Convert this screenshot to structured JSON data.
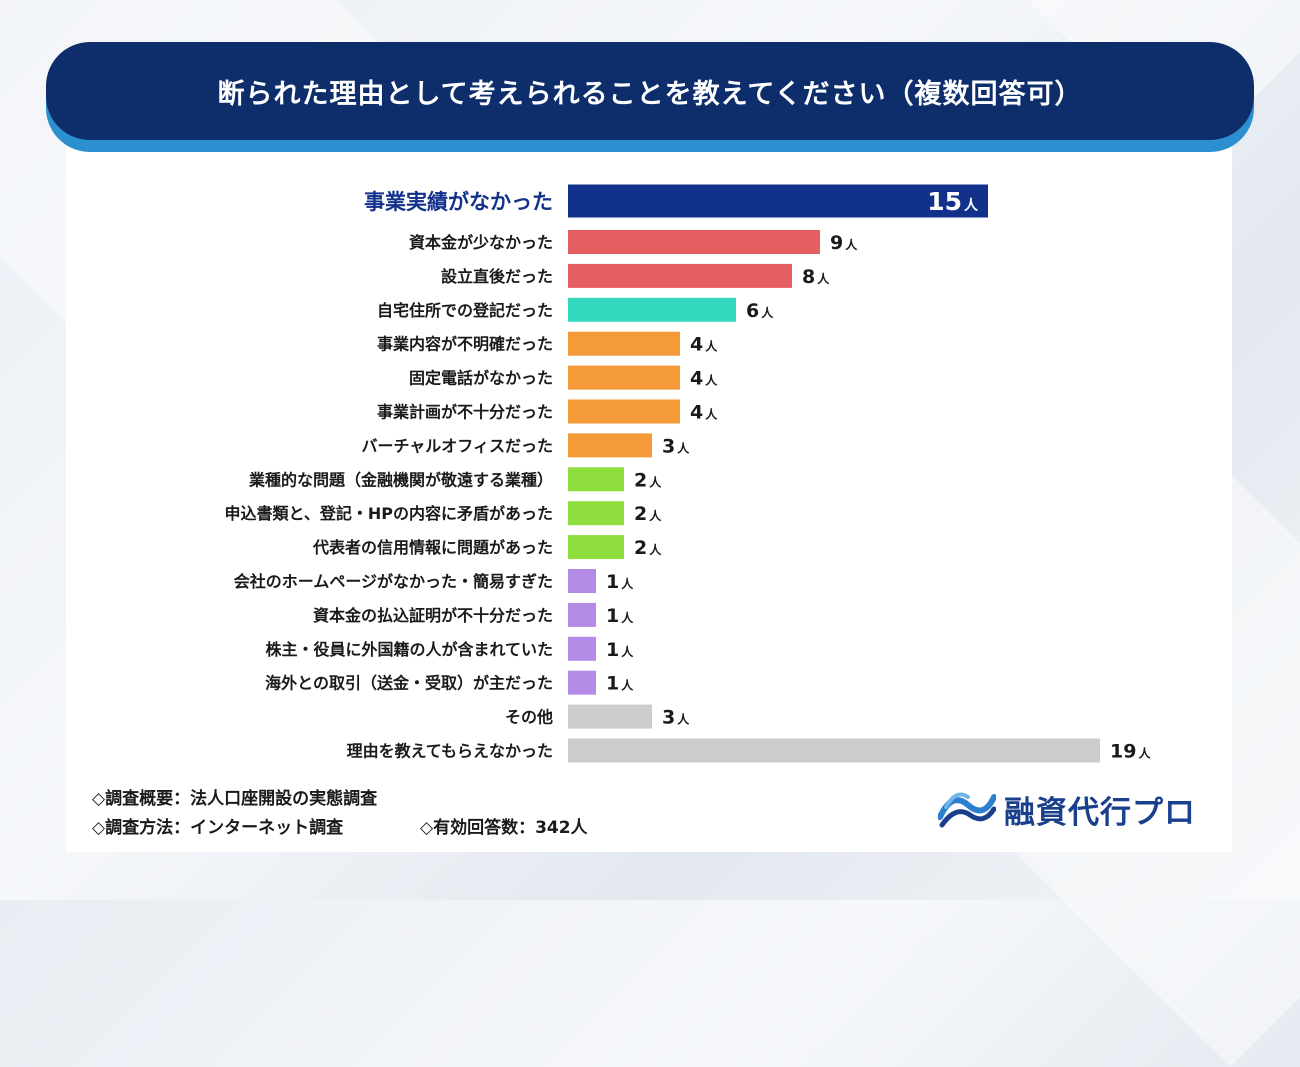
{
  "title": "断られた理由として考えられることを教えてください（複数回答可）",
  "chart_data": {
    "type": "bar",
    "orientation": "horizontal",
    "unit": "人",
    "categories": [
      "事業実績がなかった",
      "資本金が少なかった",
      "設立直後だった",
      "自宅住所での登記だった",
      "事業内容が不明確だった",
      "固定電話がなかった",
      "事業計画が不十分だった",
      "バーチャルオフィスだった",
      "業種的な問題（金融機関が敬遠する業種）",
      "申込書類と、登記・HPの内容に矛盾があった",
      "代表者の信用情報に問題があった",
      "会社のホームページがなかった・簡易すぎた",
      "資本金の払込証明が不十分だった",
      "株主・役員に外国籍の人が含まれていた",
      "海外との取引（送金・受取）が主だった",
      "その他",
      "理由を教えてもらえなかった"
    ],
    "values": [
      15,
      9,
      8,
      6,
      4,
      4,
      4,
      3,
      2,
      2,
      2,
      1,
      1,
      1,
      1,
      3,
      19
    ],
    "colors": [
      "#12318a",
      "#e45e62",
      "#e45e62",
      "#35d9bf",
      "#f59a38",
      "#f59a38",
      "#f59a38",
      "#f59a38",
      "#8ddd3c",
      "#8ddd3c",
      "#8ddd3c",
      "#b48be6",
      "#b48be6",
      "#b48be6",
      "#b48be6",
      "#cccccc",
      "#cccccc"
    ],
    "highlight_index": 0,
    "highlight_label_color": "#12318a",
    "xlim": [
      0,
      19
    ]
  },
  "footer": {
    "line1": "◇調査概要：法人口座開設の実態調査",
    "line2a": "◇調査方法：インターネット調査",
    "line2b": "◇有効回答数：342人"
  },
  "logo": {
    "text": "融資代行プロ",
    "icon": "wave-logo-icon"
  }
}
